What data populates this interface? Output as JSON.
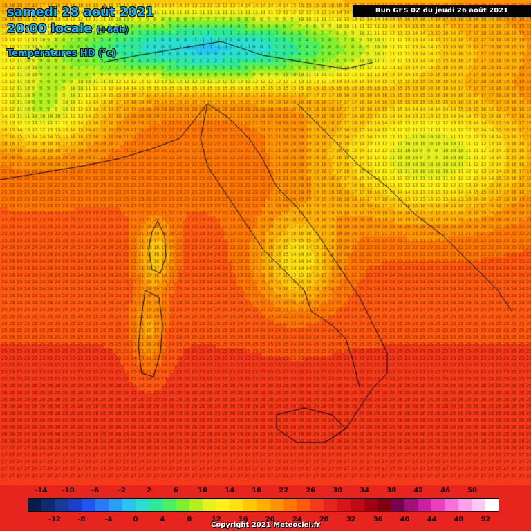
{
  "header": {
    "date": "samedi 28 août 2021",
    "time": "20:00 locale",
    "offset": "(+66h)",
    "parameter": "Températures HD (°c)",
    "run": "Run GFS 0Z du jeudi 26 août 2021"
  },
  "footer": {
    "copyright": "Copyright 2021 Meteociel.fr"
  },
  "legend": {
    "unit": "°c",
    "top_labels": [
      "-14",
      "-10",
      "-6",
      "-2",
      "2",
      "6",
      "10",
      "14",
      "18",
      "22",
      "26",
      "30",
      "34",
      "38",
      "42",
      "46",
      "50"
    ],
    "bottom_labels": [
      "-12",
      "-8",
      "-4",
      "0",
      "4",
      "8",
      "12",
      "16",
      "20",
      "24",
      "28",
      "32",
      "36",
      "40",
      "44",
      "48",
      "52"
    ],
    "colors": [
      "#0a1a4a",
      "#102a70",
      "#1a3a9a",
      "#1a3fc8",
      "#1f55f0",
      "#2a7af5",
      "#2aa0f0",
      "#27c6f0",
      "#2adfd0",
      "#2fe89a",
      "#4cf060",
      "#7ef030",
      "#b4f020",
      "#e6f020",
      "#fff018",
      "#ffe010",
      "#ffc808",
      "#ffb000",
      "#ff9400",
      "#ff7800",
      "#ff5a10",
      "#f43a1a",
      "#e8241e",
      "#d8141a",
      "#c00a14",
      "#a00010",
      "#800010",
      "#780050",
      "#a0107a",
      "#c820a0",
      "#e840c0",
      "#f870d8",
      "#ffa0ea",
      "#ffc8f4",
      "#ffffff"
    ]
  },
  "map": {
    "icons": [
      "temperature-field",
      "coastline-outline",
      "border-outline"
    ]
  }
}
